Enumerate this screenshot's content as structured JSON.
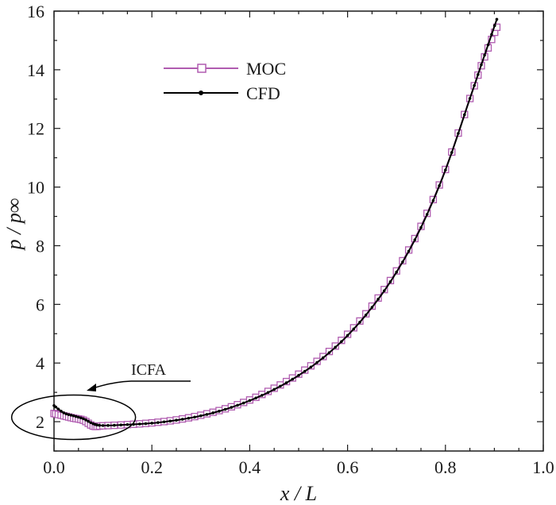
{
  "chart_data": {
    "type": "line",
    "title": "",
    "xlabel": "x / L",
    "ylabel": "p / p∞",
    "xlim": [
      0.0,
      1.0
    ],
    "ylim": [
      1.0,
      16.0
    ],
    "x_ticks": [
      "0.0",
      "0.2",
      "0.4",
      "0.6",
      "0.8",
      "1.0"
    ],
    "y_ticks": [
      "2",
      "4",
      "6",
      "8",
      "10",
      "12",
      "14",
      "16"
    ],
    "legend_position": "top-left",
    "annotation": {
      "text": "ICFA",
      "target_x": 0.04,
      "target_y": 2.15
    },
    "series": [
      {
        "name": "MOC",
        "color": "#b05cb0",
        "marker": "open-square",
        "x": [
          0.0,
          0.02,
          0.04,
          0.06,
          0.08,
          0.1,
          0.15,
          0.2,
          0.25,
          0.3,
          0.35,
          0.4,
          0.45,
          0.5,
          0.55,
          0.6,
          0.65,
          0.7,
          0.75,
          0.8,
          0.85,
          0.88,
          0.905
        ],
        "y": [
          2.28,
          2.2,
          2.12,
          2.05,
          1.85,
          1.86,
          1.9,
          1.96,
          2.06,
          2.22,
          2.44,
          2.74,
          3.14,
          3.62,
          4.22,
          4.98,
          5.94,
          7.14,
          8.66,
          10.6,
          13.02,
          14.44,
          15.45
        ]
      },
      {
        "name": "CFD",
        "color": "#000000",
        "marker": "filled-dot",
        "x": [
          0.0,
          0.02,
          0.04,
          0.06,
          0.08,
          0.1,
          0.15,
          0.2,
          0.25,
          0.3,
          0.35,
          0.4,
          0.45,
          0.5,
          0.55,
          0.6,
          0.65,
          0.7,
          0.75,
          0.8,
          0.85,
          0.88,
          0.905
        ],
        "y": [
          2.55,
          2.3,
          2.2,
          2.1,
          1.93,
          1.87,
          1.9,
          1.95,
          2.05,
          2.2,
          2.42,
          2.72,
          3.1,
          3.58,
          4.18,
          4.94,
          5.9,
          7.1,
          8.62,
          10.58,
          13.02,
          14.5,
          15.72
        ]
      }
    ]
  }
}
